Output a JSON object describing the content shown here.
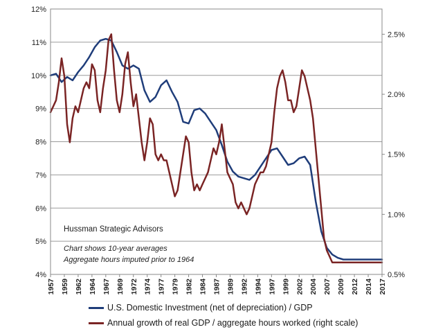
{
  "chart_data": {
    "type": "line",
    "title": "",
    "xlabel": "",
    "ylabel": "",
    "x_tick_labels": [
      "1957",
      "1959",
      "1962",
      "1964",
      "1967",
      "1969",
      "1972",
      "1974",
      "1977",
      "1979",
      "1982",
      "1984",
      "1987",
      "1989",
      "1992",
      "1994",
      "1997",
      "1999",
      "2002",
      "2004",
      "2007",
      "2009",
      "2012",
      "2014",
      "2017"
    ],
    "x_ticks_years": [
      1957.0,
      1959.5,
      1962.0,
      1964.5,
      1967.0,
      1969.5,
      1972.0,
      1974.5,
      1977.0,
      1979.5,
      1982.0,
      1984.5,
      1987.0,
      1989.5,
      1992.0,
      1994.5,
      1997.0,
      1999.5,
      2002.0,
      2004.5,
      2007.0,
      2009.5,
      2012.0,
      2014.5,
      2017.0
    ],
    "y_left_ticks": [
      "4%",
      "5%",
      "6%",
      "7%",
      "8%",
      "9%",
      "10%",
      "11%",
      "12%"
    ],
    "y_left_range": [
      4,
      12
    ],
    "y_right_ticks": [
      "0.5%",
      "1.0%",
      "1.5%",
      "2.0%",
      "2.5%"
    ],
    "y_right_range": [
      0.5,
      2.71
    ],
    "x_range": [
      1957,
      2017
    ],
    "grid": "horizontal",
    "series": [
      {
        "name": "U.S. Domestic Investment (net of depreciation) / GDP",
        "axis": "left",
        "color": "#1f3d7a",
        "x": [
          1957,
          1958,
          1959,
          1960,
          1961,
          1962,
          1963,
          1964,
          1965,
          1966,
          1967,
          1968,
          1969,
          1970,
          1971,
          1972,
          1973,
          1974,
          1975,
          1976,
          1977,
          1978,
          1979,
          1980,
          1981,
          1982,
          1983,
          1984,
          1985,
          1986,
          1987,
          1988,
          1989,
          1990,
          1991,
          1992,
          1993,
          1994,
          1995,
          1996,
          1997,
          1998,
          1999,
          2000,
          2001,
          2002,
          2003,
          2004,
          2005,
          2006,
          2007,
          2008,
          2009,
          2010,
          2011,
          2012,
          2013,
          2014,
          2015,
          2016,
          2017
        ],
        "y": [
          10.0,
          10.05,
          9.8,
          9.95,
          9.85,
          10.1,
          10.3,
          10.55,
          10.85,
          11.05,
          11.1,
          11.05,
          10.7,
          10.3,
          10.2,
          10.3,
          10.2,
          9.55,
          9.2,
          9.35,
          9.7,
          9.85,
          9.5,
          9.2,
          8.6,
          8.55,
          8.95,
          9.0,
          8.85,
          8.6,
          8.35,
          7.9,
          7.4,
          7.1,
          6.95,
          6.9,
          6.85,
          7.0,
          7.25,
          7.5,
          7.75,
          7.8,
          7.55,
          7.3,
          7.35,
          7.5,
          7.55,
          7.3,
          6.2,
          5.3,
          4.8,
          4.6,
          4.5,
          4.45,
          4.45,
          4.45,
          4.45,
          4.45,
          4.45,
          4.45,
          4.45
        ]
      },
      {
        "name": "Annual growth of real GDP / aggregate hours worked (right scale)",
        "axis": "right",
        "color": "#7a2424",
        "x": [
          1957.0,
          1957.5,
          1958.0,
          1958.5,
          1959.0,
          1959.5,
          1960.0,
          1960.5,
          1961.0,
          1961.5,
          1962.0,
          1962.5,
          1963.0,
          1963.5,
          1964.0,
          1964.5,
          1965.0,
          1965.5,
          1966.0,
          1966.5,
          1967.0,
          1967.5,
          1968.0,
          1968.5,
          1969.0,
          1969.5,
          1970.0,
          1970.5,
          1971.0,
          1971.5,
          1972.0,
          1972.5,
          1973.0,
          1973.5,
          1974.0,
          1974.5,
          1975.0,
          1975.5,
          1976.0,
          1976.5,
          1977.0,
          1977.5,
          1978.0,
          1978.5,
          1979.0,
          1979.5,
          1980.0,
          1980.5,
          1981.0,
          1981.5,
          1982.0,
          1982.5,
          1983.0,
          1983.5,
          1984.0,
          1984.5,
          1985.0,
          1985.5,
          1986.0,
          1986.5,
          1987.0,
          1987.5,
          1988.0,
          1988.5,
          1989.0,
          1989.5,
          1990.0,
          1990.5,
          1991.0,
          1991.5,
          1992.0,
          1992.5,
          1993.0,
          1993.5,
          1994.0,
          1994.5,
          1995.0,
          1995.5,
          1996.0,
          1996.5,
          1997.0,
          1997.5,
          1998.0,
          1998.5,
          1999.0,
          1999.5,
          2000.0,
          2000.5,
          2001.0,
          2001.5,
          2002.0,
          2002.5,
          2003.0,
          2003.5,
          2004.0,
          2004.5,
          2005.0,
          2005.5,
          2006.0,
          2006.5,
          2007.0,
          2007.5,
          2008.0,
          2008.5,
          2009.0,
          2009.5,
          2010.0,
          2010.5,
          2011.0,
          2011.5,
          2012.0,
          2012.5,
          2013.0,
          2013.5,
          2014.0,
          2014.5,
          2015.0,
          2015.5,
          2016.0,
          2016.5,
          2017.0
        ],
        "y": [
          1.85,
          1.9,
          1.95,
          2.1,
          2.3,
          2.15,
          1.75,
          1.6,
          1.8,
          1.9,
          1.85,
          1.95,
          2.05,
          2.1,
          2.05,
          2.25,
          2.2,
          1.95,
          1.85,
          2.05,
          2.2,
          2.45,
          2.5,
          2.2,
          1.95,
          1.85,
          2.0,
          2.25,
          2.35,
          2.1,
          1.9,
          2.0,
          1.8,
          1.6,
          1.45,
          1.6,
          1.8,
          1.75,
          1.5,
          1.45,
          1.5,
          1.45,
          1.45,
          1.35,
          1.25,
          1.15,
          1.2,
          1.35,
          1.5,
          1.65,
          1.6,
          1.35,
          1.2,
          1.25,
          1.2,
          1.25,
          1.3,
          1.35,
          1.45,
          1.55,
          1.5,
          1.6,
          1.75,
          1.55,
          1.35,
          1.3,
          1.25,
          1.1,
          1.05,
          1.1,
          1.05,
          1.0,
          1.05,
          1.15,
          1.25,
          1.3,
          1.35,
          1.35,
          1.4,
          1.5,
          1.6,
          1.85,
          2.05,
          2.15,
          2.2,
          2.1,
          1.95,
          1.95,
          1.85,
          1.9,
          2.05,
          2.2,
          2.15,
          2.05,
          1.95,
          1.8,
          1.55,
          1.3,
          1.05,
          0.8,
          0.7,
          0.65,
          0.6,
          0.6,
          0.6,
          0.6,
          0.6,
          0.6,
          0.6,
          0.6,
          0.6,
          0.6,
          0.6,
          0.6,
          0.6,
          0.6,
          0.6,
          0.6,
          0.6,
          0.6,
          0.6
        ]
      }
    ],
    "annotations": {
      "brand": "Hussman Strategic Advisors",
      "note_line1": "Chart shows 10-year averages",
      "note_line2": "Aggregate hours imputed prior to 1964"
    },
    "legend": {
      "placement": "bottom",
      "items": [
        "U.S. Domestic Investment (net of depreciation) / GDP",
        "Annual growth of real GDP / aggregate hours worked (right scale)"
      ]
    }
  }
}
